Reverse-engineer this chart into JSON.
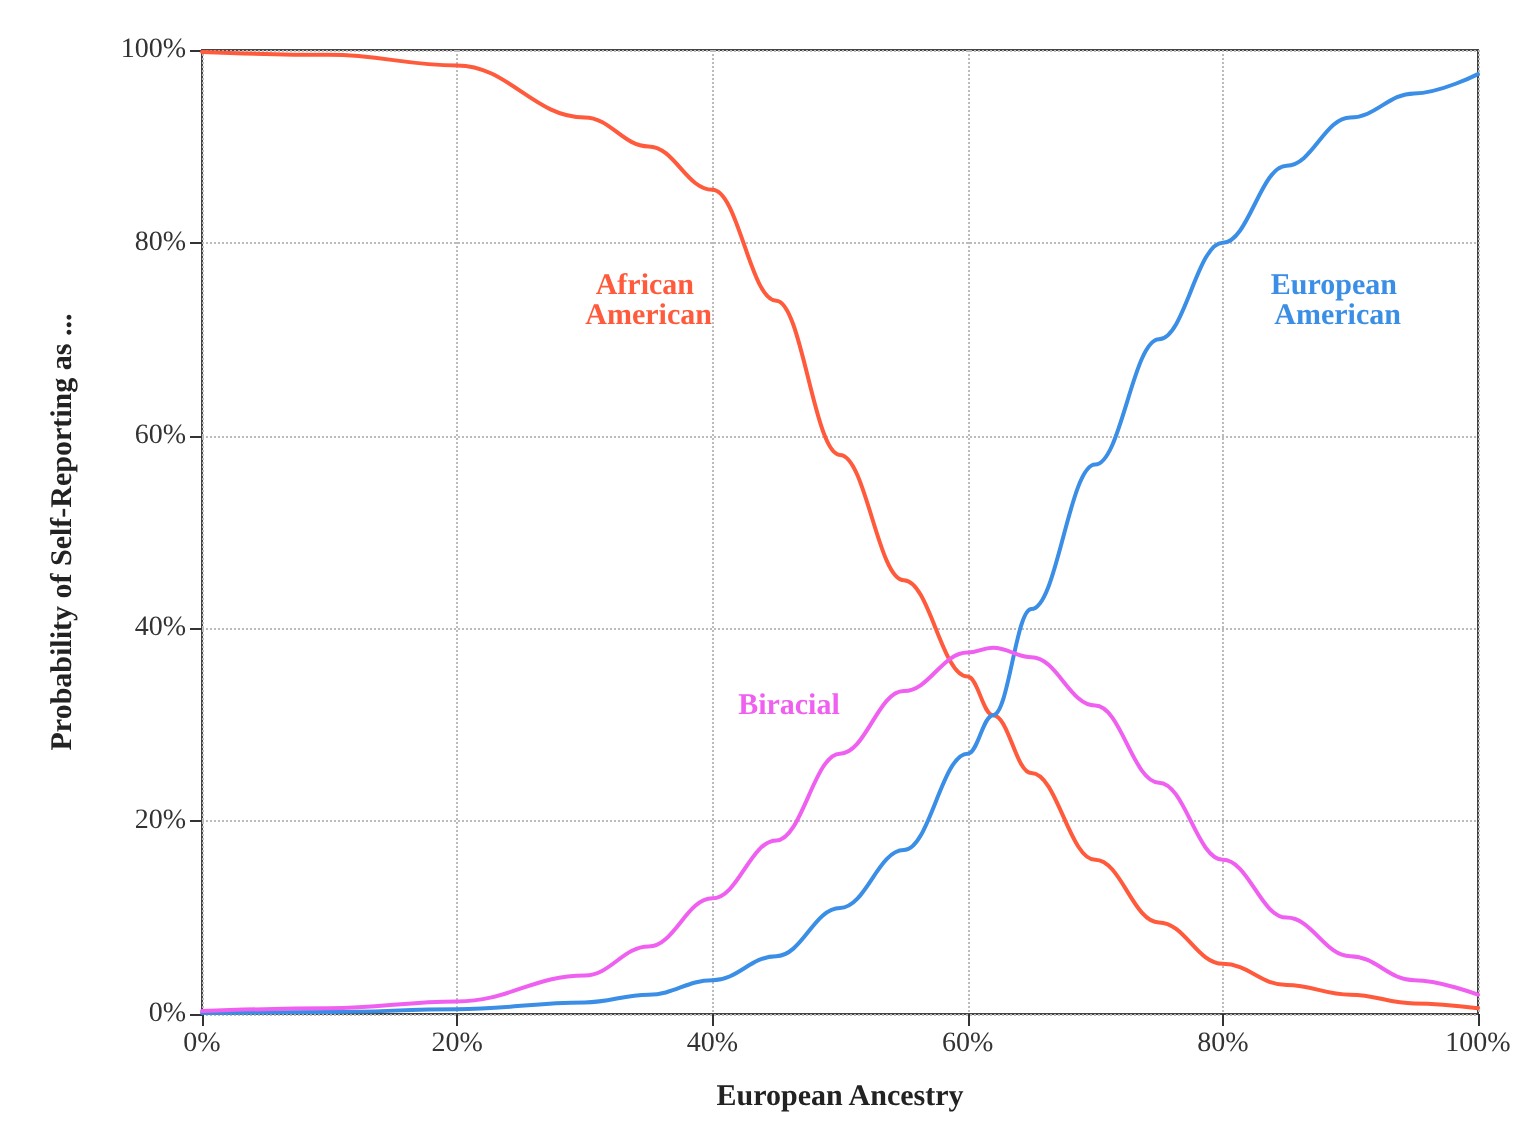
{
  "chart_data": {
    "type": "line",
    "xlabel": "European Ancestry",
    "ylabel": "Probability of Self-Reporting as ...",
    "xlim": [
      0,
      100
    ],
    "ylim": [
      0,
      100
    ],
    "xticks": [
      {
        "value": 0,
        "label": "0%"
      },
      {
        "value": 20,
        "label": "20%"
      },
      {
        "value": 40,
        "label": "40%"
      },
      {
        "value": 60,
        "label": "60%"
      },
      {
        "value": 80,
        "label": "80%"
      },
      {
        "value": 100,
        "label": "100%"
      }
    ],
    "yticks": [
      {
        "value": 0,
        "label": "0%"
      },
      {
        "value": 20,
        "label": "20%"
      },
      {
        "value": 40,
        "label": "40%"
      },
      {
        "value": 60,
        "label": "60%"
      },
      {
        "value": 80,
        "label": "80%"
      },
      {
        "value": 100,
        "label": "100%"
      }
    ],
    "grid": true,
    "legend": false,
    "marker": "none",
    "line_style": "solid",
    "x": [
      0,
      10,
      20,
      30,
      35,
      40,
      45,
      50,
      55,
      60,
      62,
      65,
      70,
      75,
      80,
      85,
      90,
      95,
      100
    ],
    "series": [
      {
        "name": "African American",
        "color": "#ff5a3c",
        "values": [
          99.8,
          99.5,
          98.4,
          93,
          90,
          85.5,
          74,
          58,
          45,
          35,
          31,
          25,
          16,
          9.5,
          5.2,
          3,
          2,
          1.1,
          0.6
        ]
      },
      {
        "name": "European American",
        "color": "#3a8ee6",
        "values": [
          0.1,
          0.2,
          0.5,
          1.2,
          2,
          3.5,
          6,
          11,
          17,
          27,
          31,
          42,
          57,
          70,
          80,
          88,
          93,
          95.5,
          97.5
        ]
      },
      {
        "name": "Biracial",
        "color": "#f060f0",
        "values": [
          0.3,
          0.6,
          1.3,
          4,
          7,
          12,
          18,
          27,
          33.5,
          37.5,
          38,
          37,
          32,
          24,
          16,
          10,
          6,
          3.5,
          2
        ]
      }
    ]
  }
}
